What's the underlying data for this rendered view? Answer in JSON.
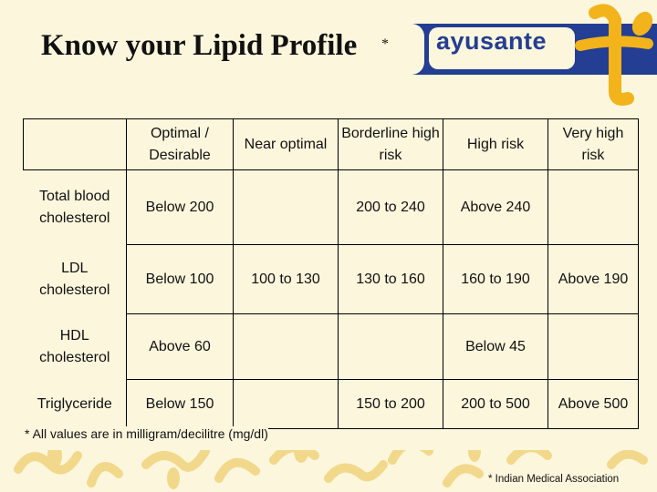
{
  "slide": {
    "title": "Know your Lipid Profile",
    "title_marker": "*",
    "brand": "ayusante",
    "footnote": "* All values are in milligram/decilitre (mg/dl)",
    "source": "* Indian Medical Association"
  },
  "colors": {
    "background": "#fcf6dc",
    "header_band": "#233e92",
    "logo_accent": "#f2b31b",
    "decoration": "#f2d88a"
  },
  "table": {
    "headers": [
      "",
      "Optimal / Desirable",
      "Near optimal",
      "Borderline high risk",
      "High risk",
      "Very high risk"
    ],
    "rows": [
      {
        "label": "Total blood cholesterol",
        "optimal": "Below 200",
        "near": "",
        "borderline": "200 to 240",
        "high": "Above 240",
        "very_high": ""
      },
      {
        "label": "LDL cholesterol",
        "optimal": "Below 100",
        "near": "100 to 130",
        "borderline": "130 to 160",
        "high": "160 to 190",
        "very_high": "Above 190"
      },
      {
        "label": "HDL cholesterol",
        "optimal": "Above 60",
        "near": "",
        "borderline": "",
        "high": "Below 45",
        "very_high": ""
      },
      {
        "label": "Triglyceride",
        "optimal": "Below 150",
        "near": "",
        "borderline": "150 to 200",
        "high": "200 to 500",
        "very_high": "Above 500"
      }
    ]
  }
}
